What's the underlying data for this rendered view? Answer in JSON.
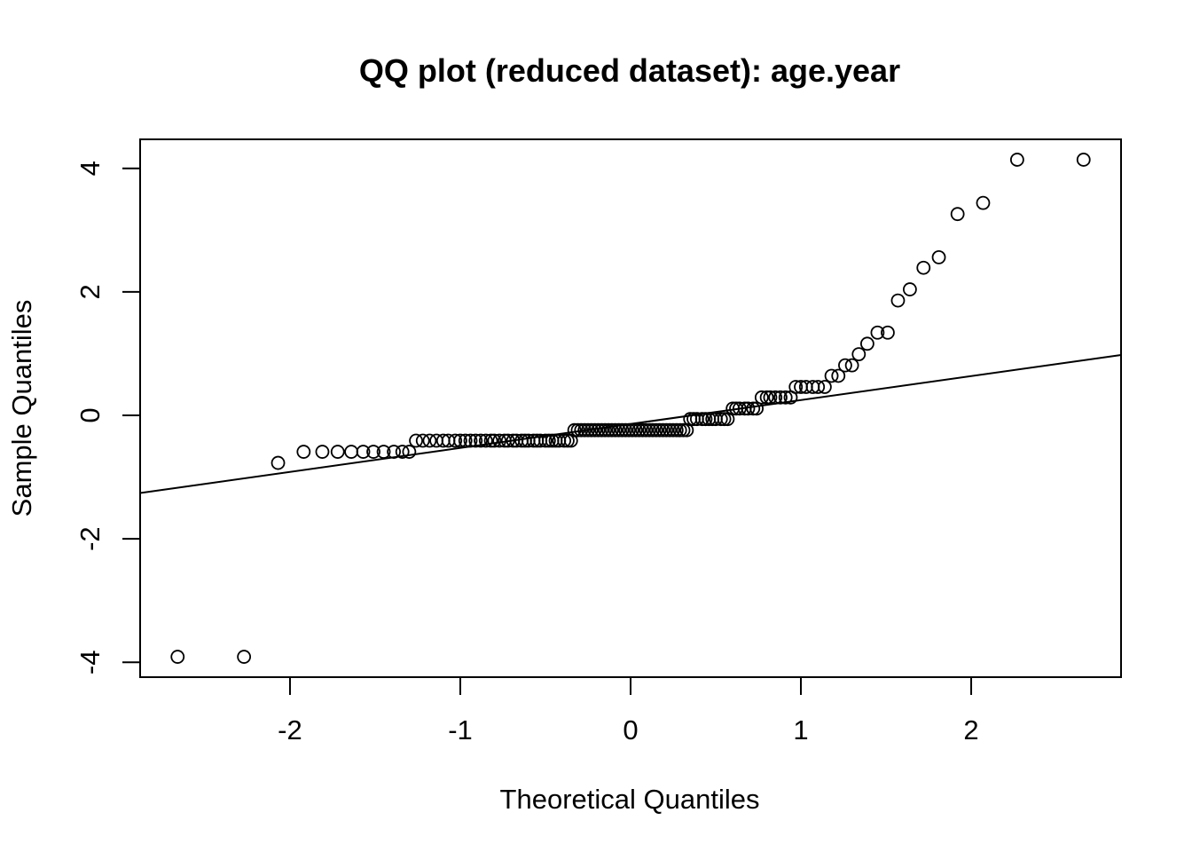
{
  "chart_data": {
    "type": "scatter",
    "title": "QQ plot (reduced dataset): age.year",
    "xlabel": "Theoretical Quantiles",
    "ylabel": "Sample Quantiles",
    "xlim": [
      -2.88,
      2.88
    ],
    "ylim": [
      -4.24,
      4.47
    ],
    "xticks": [
      -2,
      -1,
      0,
      1,
      2
    ],
    "xtick_labels": [
      "-2",
      "-1",
      "0",
      "1",
      "2"
    ],
    "yticks": [
      -4,
      -2,
      0,
      2,
      4
    ],
    "ytick_labels": [
      "-4",
      "-2",
      "0",
      "2",
      "4"
    ],
    "grid": false,
    "reference_line": {
      "slope": 0.388,
      "intercept": -0.14
    },
    "series": [
      {
        "points": [
          [
            -2.66,
            -3.91
          ],
          [
            -2.27,
            -3.91
          ],
          [
            -2.07,
            -0.77
          ],
          [
            -1.92,
            -0.59
          ],
          [
            -1.81,
            -0.59
          ],
          [
            -1.72,
            -0.59
          ],
          [
            -1.64,
            -0.59
          ],
          [
            -1.57,
            -0.59
          ],
          [
            -1.51,
            -0.59
          ],
          [
            -1.45,
            -0.59
          ],
          [
            -1.39,
            -0.59
          ],
          [
            -1.34,
            -0.59
          ],
          [
            -1.3,
            -0.59
          ],
          [
            -1.26,
            -0.41
          ],
          [
            -1.22,
            -0.41
          ],
          [
            -1.18,
            -0.41
          ],
          [
            -1.14,
            -0.41
          ],
          [
            -1.1,
            -0.41
          ],
          [
            -1.07,
            -0.41
          ],
          [
            -1.03,
            -0.41
          ],
          [
            -1.0,
            -0.41
          ],
          [
            -0.97,
            -0.41
          ],
          [
            -0.94,
            -0.41
          ],
          [
            -0.91,
            -0.41
          ],
          [
            -0.88,
            -0.41
          ],
          [
            -0.85,
            -0.41
          ],
          [
            -0.82,
            -0.41
          ],
          [
            -0.8,
            -0.41
          ],
          [
            -0.77,
            -0.41
          ],
          [
            -0.74,
            -0.41
          ],
          [
            -0.72,
            -0.41
          ],
          [
            -0.69,
            -0.41
          ],
          [
            -0.67,
            -0.41
          ],
          [
            -0.64,
            -0.41
          ],
          [
            -0.62,
            -0.41
          ],
          [
            -0.6,
            -0.41
          ],
          [
            -0.57,
            -0.41
          ],
          [
            -0.55,
            -0.41
          ],
          [
            -0.53,
            -0.41
          ],
          [
            -0.5,
            -0.41
          ],
          [
            -0.48,
            -0.41
          ],
          [
            -0.46,
            -0.41
          ],
          [
            -0.44,
            -0.41
          ],
          [
            -0.42,
            -0.41
          ],
          [
            -0.39,
            -0.41
          ],
          [
            -0.37,
            -0.41
          ],
          [
            -0.35,
            -0.41
          ],
          [
            -0.33,
            -0.24
          ],
          [
            -0.31,
            -0.24
          ],
          [
            -0.29,
            -0.24
          ],
          [
            -0.27,
            -0.24
          ],
          [
            -0.25,
            -0.24
          ],
          [
            -0.23,
            -0.24
          ],
          [
            -0.21,
            -0.24
          ],
          [
            -0.19,
            -0.24
          ],
          [
            -0.17,
            -0.24
          ],
          [
            -0.15,
            -0.24
          ],
          [
            -0.13,
            -0.24
          ],
          [
            -0.11,
            -0.24
          ],
          [
            -0.09,
            -0.24
          ],
          [
            -0.07,
            -0.24
          ],
          [
            -0.05,
            -0.24
          ],
          [
            -0.03,
            -0.24
          ],
          [
            -0.01,
            -0.24
          ],
          [
            0.01,
            -0.24
          ],
          [
            0.03,
            -0.24
          ],
          [
            0.05,
            -0.24
          ],
          [
            0.07,
            -0.24
          ],
          [
            0.09,
            -0.24
          ],
          [
            0.11,
            -0.24
          ],
          [
            0.13,
            -0.24
          ],
          [
            0.15,
            -0.24
          ],
          [
            0.17,
            -0.24
          ],
          [
            0.19,
            -0.24
          ],
          [
            0.21,
            -0.24
          ],
          [
            0.23,
            -0.24
          ],
          [
            0.25,
            -0.24
          ],
          [
            0.27,
            -0.24
          ],
          [
            0.29,
            -0.24
          ],
          [
            0.31,
            -0.24
          ],
          [
            0.33,
            -0.24
          ],
          [
            0.35,
            -0.06
          ],
          [
            0.37,
            -0.06
          ],
          [
            0.39,
            -0.06
          ],
          [
            0.42,
            -0.06
          ],
          [
            0.44,
            -0.06
          ],
          [
            0.46,
            -0.06
          ],
          [
            0.48,
            -0.06
          ],
          [
            0.5,
            -0.06
          ],
          [
            0.53,
            -0.06
          ],
          [
            0.55,
            -0.06
          ],
          [
            0.57,
            -0.06
          ],
          [
            0.6,
            0.11
          ],
          [
            0.62,
            0.11
          ],
          [
            0.64,
            0.11
          ],
          [
            0.67,
            0.11
          ],
          [
            0.69,
            0.11
          ],
          [
            0.72,
            0.11
          ],
          [
            0.74,
            0.11
          ],
          [
            0.77,
            0.29
          ],
          [
            0.8,
            0.29
          ],
          [
            0.82,
            0.29
          ],
          [
            0.85,
            0.29
          ],
          [
            0.88,
            0.29
          ],
          [
            0.91,
            0.29
          ],
          [
            0.94,
            0.29
          ],
          [
            0.97,
            0.46
          ],
          [
            1.0,
            0.46
          ],
          [
            1.03,
            0.46
          ],
          [
            1.07,
            0.46
          ],
          [
            1.1,
            0.46
          ],
          [
            1.14,
            0.46
          ],
          [
            1.18,
            0.64
          ],
          [
            1.22,
            0.64
          ],
          [
            1.26,
            0.81
          ],
          [
            1.3,
            0.81
          ],
          [
            1.34,
            0.99
          ],
          [
            1.39,
            1.16
          ],
          [
            1.45,
            1.34
          ],
          [
            1.51,
            1.34
          ],
          [
            1.57,
            1.86
          ],
          [
            1.64,
            2.04
          ],
          [
            1.72,
            2.39
          ],
          [
            1.81,
            2.56
          ],
          [
            1.92,
            3.26
          ],
          [
            2.07,
            3.44
          ],
          [
            2.27,
            4.14
          ],
          [
            2.66,
            4.14
          ]
        ]
      }
    ]
  }
}
